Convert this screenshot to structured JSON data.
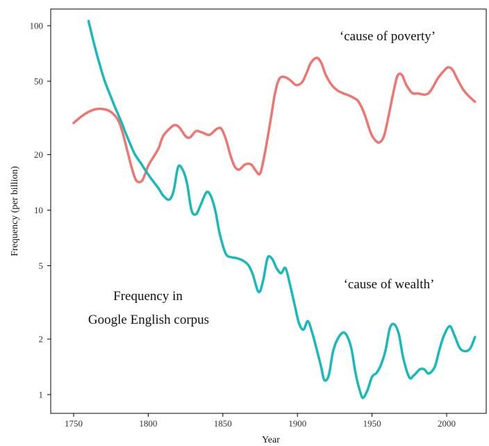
{
  "chart_data": {
    "type": "line",
    "title": "",
    "xlabel": "Year",
    "ylabel": "Frequency (per billion)",
    "xlim": [
      1740,
      2030
    ],
    "ylim": [
      0.85,
      130
    ],
    "y_scale": "log",
    "grid": false,
    "x_ticks": [
      1750,
      1800,
      1850,
      1900,
      1950,
      2000
    ],
    "y_ticks": [
      1,
      2,
      5,
      10,
      20,
      50,
      100
    ],
    "annotations": [
      {
        "id": "poverty",
        "text": "‘cause of poverty’"
      },
      {
        "id": "wealth",
        "text": "‘cause of wealth’"
      },
      {
        "id": "note1",
        "text": "Frequency in"
      },
      {
        "id": "note2",
        "text": "Google English corpus"
      }
    ],
    "series": [
      {
        "label_annotation": "poverty",
        "color": "#f07470",
        "points": [
          [
            1750,
            29.7
          ],
          [
            1755,
            32.1
          ],
          [
            1760,
            34.1
          ],
          [
            1765,
            35.3
          ],
          [
            1770,
            35.3
          ],
          [
            1775,
            34.1
          ],
          [
            1780,
            30.6
          ],
          [
            1783,
            26.0
          ],
          [
            1786,
            21.0
          ],
          [
            1789,
            16.9
          ],
          [
            1792,
            14.5
          ],
          [
            1796,
            14.5
          ],
          [
            1800,
            17.4
          ],
          [
            1803,
            19.1
          ],
          [
            1807,
            21.7
          ],
          [
            1810,
            25.2
          ],
          [
            1815,
            28.0
          ],
          [
            1818,
            28.9
          ],
          [
            1821,
            28.0
          ],
          [
            1825,
            25.2
          ],
          [
            1828,
            24.8
          ],
          [
            1832,
            26.8
          ],
          [
            1836,
            26.4
          ],
          [
            1841,
            25.6
          ],
          [
            1846,
            27.6
          ],
          [
            1849,
            27.6
          ],
          [
            1852,
            24.3
          ],
          [
            1855,
            20.0
          ],
          [
            1858,
            17.2
          ],
          [
            1861,
            16.6
          ],
          [
            1865,
            17.7
          ],
          [
            1869,
            17.7
          ],
          [
            1872,
            16.4
          ],
          [
            1875,
            15.8
          ],
          [
            1878,
            20.0
          ],
          [
            1882,
            30.6
          ],
          [
            1885,
            43.1
          ],
          [
            1888,
            51.7
          ],
          [
            1892,
            52.5
          ],
          [
            1896,
            50.0
          ],
          [
            1899,
            47.7
          ],
          [
            1903,
            49.2
          ],
          [
            1906,
            55.0
          ],
          [
            1909,
            62.8
          ],
          [
            1913,
            66.9
          ],
          [
            1916,
            62.8
          ],
          [
            1919,
            54.1
          ],
          [
            1923,
            47.7
          ],
          [
            1927,
            44.5
          ],
          [
            1931,
            42.9
          ],
          [
            1935,
            41.7
          ],
          [
            1938,
            40.5
          ],
          [
            1941,
            38.7
          ],
          [
            1945,
            33.1
          ],
          [
            1949,
            26.4
          ],
          [
            1952,
            24.0
          ],
          [
            1955,
            23.3
          ],
          [
            1958,
            25.2
          ],
          [
            1961,
            32.1
          ],
          [
            1964,
            42.3
          ],
          [
            1967,
            53.3
          ],
          [
            1970,
            54.1
          ],
          [
            1973,
            47.7
          ],
          [
            1977,
            43.1
          ],
          [
            1981,
            42.9
          ],
          [
            1985,
            42.3
          ],
          [
            1988,
            43.1
          ],
          [
            1991,
            46.7
          ],
          [
            1994,
            51.7
          ],
          [
            1998,
            56.7
          ],
          [
            2001,
            59.5
          ],
          [
            2004,
            57.6
          ],
          [
            2007,
            51.7
          ],
          [
            2011,
            45.2
          ],
          [
            2015,
            41.4
          ],
          [
            2019,
            38.7
          ]
        ]
      },
      {
        "label_annotation": "wealth",
        "color": "#17babb",
        "points": [
          [
            1760,
            106
          ],
          [
            1764,
            78
          ],
          [
            1768,
            59.5
          ],
          [
            1771,
            49.7
          ],
          [
            1775,
            41.1
          ],
          [
            1778,
            35.8
          ],
          [
            1782,
            30.1
          ],
          [
            1785,
            26.0
          ],
          [
            1788,
            22.8
          ],
          [
            1791,
            20.1
          ],
          [
            1795,
            18.0
          ],
          [
            1798,
            16.5
          ],
          [
            1801,
            15.2
          ],
          [
            1804,
            14.1
          ],
          [
            1807,
            13.1
          ],
          [
            1810,
            12.0
          ],
          [
            1814,
            11.4
          ],
          [
            1817,
            12.7
          ],
          [
            1820,
            17.1
          ],
          [
            1823,
            16.6
          ],
          [
            1826,
            14.0
          ],
          [
            1829,
            10.0
          ],
          [
            1832,
            9.5
          ],
          [
            1835,
            10.6
          ],
          [
            1839,
            12.5
          ],
          [
            1842,
            11.9
          ],
          [
            1845,
            9.9
          ],
          [
            1848,
            7.4
          ],
          [
            1852,
            5.8
          ],
          [
            1856,
            5.55
          ],
          [
            1859,
            5.5
          ],
          [
            1863,
            5.35
          ],
          [
            1867,
            5.05
          ],
          [
            1870,
            4.5
          ],
          [
            1874,
            3.6
          ],
          [
            1877,
            4.15
          ],
          [
            1880,
            5.5
          ],
          [
            1883,
            5.45
          ],
          [
            1886,
            4.85
          ],
          [
            1889,
            4.55
          ],
          [
            1892,
            4.85
          ],
          [
            1895,
            3.95
          ],
          [
            1898,
            3.1
          ],
          [
            1901,
            2.45
          ],
          [
            1904,
            2.25
          ],
          [
            1907,
            2.5
          ],
          [
            1910,
            2.15
          ],
          [
            1913,
            1.75
          ],
          [
            1916,
            1.4
          ],
          [
            1918,
            1.2
          ],
          [
            1921,
            1.27
          ],
          [
            1924,
            1.73
          ],
          [
            1928,
            2.07
          ],
          [
            1932,
            2.15
          ],
          [
            1936,
            1.8
          ],
          [
            1939,
            1.3
          ],
          [
            1942,
            1.04
          ],
          [
            1944,
            0.96
          ],
          [
            1947,
            1.06
          ],
          [
            1950,
            1.25
          ],
          [
            1953,
            1.31
          ],
          [
            1956,
            1.45
          ],
          [
            1959,
            1.73
          ],
          [
            1962,
            2.3
          ],
          [
            1965,
            2.4
          ],
          [
            1968,
            2.12
          ],
          [
            1971,
            1.57
          ],
          [
            1975,
            1.24
          ],
          [
            1978,
            1.27
          ],
          [
            1982,
            1.37
          ],
          [
            1985,
            1.37
          ],
          [
            1988,
            1.3
          ],
          [
            1992,
            1.41
          ],
          [
            1995,
            1.73
          ],
          [
            1998,
            2.07
          ],
          [
            2002,
            2.35
          ],
          [
            2005,
            2.12
          ],
          [
            2009,
            1.78
          ],
          [
            2013,
            1.72
          ],
          [
            2016,
            1.79
          ],
          [
            2019,
            2.05
          ]
        ]
      }
    ]
  }
}
